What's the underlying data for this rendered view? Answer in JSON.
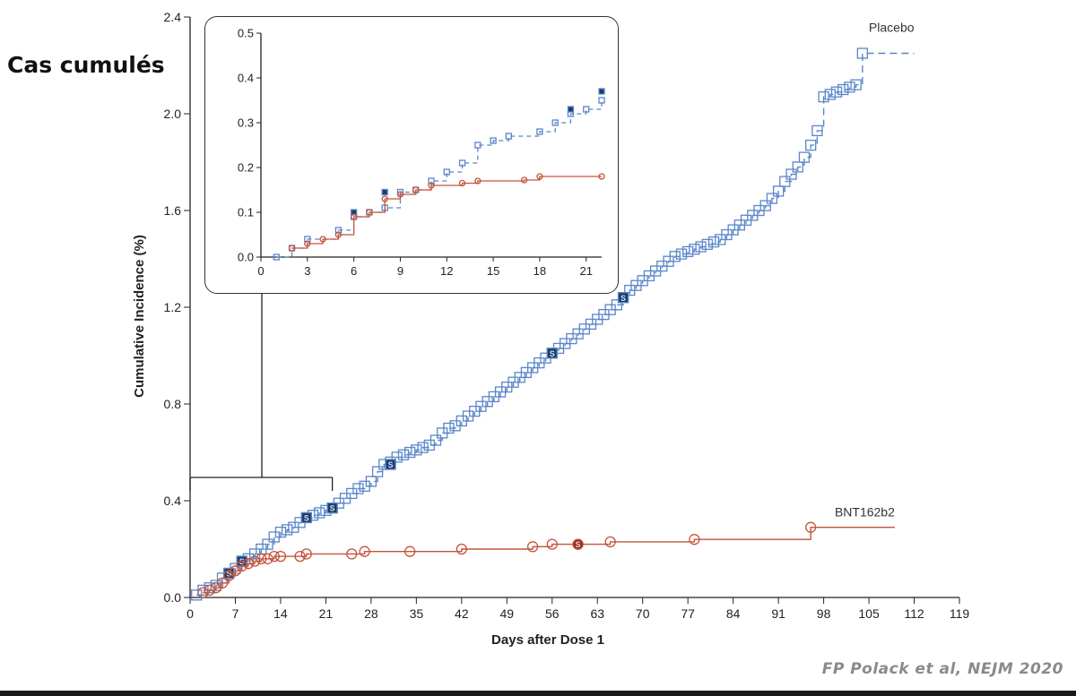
{
  "heading": "Cas cumulés",
  "citation": "FP Polack et al, NEJM 2020",
  "colors": {
    "placebo": "#5a86c8",
    "vaccine": "#c4533a",
    "marker_dark": "#1c3a66",
    "axis": "#222222"
  },
  "chart_data": [
    {
      "type": "line",
      "xlabel": "Days after Dose 1",
      "ylabel": "Cumulative Incidence (%)",
      "xlim": [
        0,
        119
      ],
      "ylim": [
        0,
        2.4
      ],
      "x_ticks": [
        "0",
        "7",
        "14",
        "21",
        "28",
        "35",
        "42",
        "49",
        "56",
        "63",
        "70",
        "77",
        "84",
        "91",
        "98",
        "105",
        "112",
        "119"
      ],
      "y_ticks": [
        "0.0",
        "0.4",
        "0.8",
        "1.2",
        "1.6",
        "2.0",
        "2.4"
      ],
      "step": true,
      "series": [
        {
          "name": "Placebo",
          "color": "#5a86c8",
          "dash": true,
          "marker": "square",
          "points": [
            [
              1,
              0.01
            ],
            [
              2,
              0.03
            ],
            [
              3,
              0.04
            ],
            [
              4,
              0.05
            ],
            [
              5,
              0.08
            ],
            [
              6,
              0.1
            ],
            [
              7,
              0.12
            ],
            [
              8,
              0.15
            ],
            [
              9,
              0.16
            ],
            [
              10,
              0.18
            ],
            [
              11,
              0.2
            ],
            [
              12,
              0.22
            ],
            [
              13,
              0.25
            ],
            [
              14,
              0.27
            ],
            [
              15,
              0.28
            ],
            [
              16,
              0.29
            ],
            [
              17,
              0.31
            ],
            [
              18,
              0.33
            ],
            [
              19,
              0.34
            ],
            [
              20,
              0.35
            ],
            [
              21,
              0.36
            ],
            [
              22,
              0.37
            ],
            [
              23,
              0.39
            ],
            [
              24,
              0.41
            ],
            [
              25,
              0.43
            ],
            [
              26,
              0.45
            ],
            [
              27,
              0.46
            ],
            [
              28,
              0.48
            ],
            [
              29,
              0.52
            ],
            [
              30,
              0.55
            ],
            [
              31,
              0.56
            ],
            [
              32,
              0.58
            ],
            [
              33,
              0.59
            ],
            [
              34,
              0.6
            ],
            [
              35,
              0.61
            ],
            [
              36,
              0.62
            ],
            [
              37,
              0.63
            ],
            [
              38,
              0.65
            ],
            [
              39,
              0.68
            ],
            [
              40,
              0.7
            ],
            [
              41,
              0.71
            ],
            [
              42,
              0.73
            ],
            [
              43,
              0.75
            ],
            [
              44,
              0.77
            ],
            [
              45,
              0.79
            ],
            [
              46,
              0.81
            ],
            [
              47,
              0.83
            ],
            [
              48,
              0.85
            ],
            [
              49,
              0.87
            ],
            [
              50,
              0.89
            ],
            [
              51,
              0.91
            ],
            [
              52,
              0.93
            ],
            [
              53,
              0.95
            ],
            [
              54,
              0.97
            ],
            [
              55,
              0.99
            ],
            [
              56,
              1.01
            ],
            [
              57,
              1.03
            ],
            [
              58,
              1.05
            ],
            [
              59,
              1.07
            ],
            [
              60,
              1.09
            ],
            [
              61,
              1.11
            ],
            [
              62,
              1.13
            ],
            [
              63,
              1.15
            ],
            [
              64,
              1.17
            ],
            [
              65,
              1.19
            ],
            [
              66,
              1.21
            ],
            [
              67,
              1.24
            ],
            [
              68,
              1.27
            ],
            [
              69,
              1.29
            ],
            [
              70,
              1.31
            ],
            [
              71,
              1.33
            ],
            [
              72,
              1.35
            ],
            [
              73,
              1.37
            ],
            [
              74,
              1.39
            ],
            [
              75,
              1.41
            ],
            [
              76,
              1.42
            ],
            [
              77,
              1.43
            ],
            [
              78,
              1.44
            ],
            [
              79,
              1.45
            ],
            [
              80,
              1.46
            ],
            [
              81,
              1.47
            ],
            [
              82,
              1.48
            ],
            [
              83,
              1.5
            ],
            [
              84,
              1.52
            ],
            [
              85,
              1.54
            ],
            [
              86,
              1.56
            ],
            [
              87,
              1.58
            ],
            [
              88,
              1.6
            ],
            [
              89,
              1.62
            ],
            [
              90,
              1.65
            ],
            [
              91,
              1.68
            ],
            [
              92,
              1.72
            ],
            [
              93,
              1.75
            ],
            [
              94,
              1.78
            ],
            [
              95,
              1.82
            ],
            [
              96,
              1.87
            ],
            [
              97,
              1.93
            ],
            [
              98,
              2.07
            ],
            [
              99,
              2.08
            ],
            [
              100,
              2.09
            ],
            [
              101,
              2.1
            ],
            [
              102,
              2.11
            ],
            [
              103,
              2.12
            ],
            [
              104,
              2.25
            ],
            [
              112,
              2.25
            ]
          ],
          "dark_markers": [
            [
              6,
              0.1
            ],
            [
              8,
              0.15
            ],
            [
              18,
              0.33
            ],
            [
              22,
              0.37
            ],
            [
              31,
              0.55
            ],
            [
              56,
              1.01
            ],
            [
              67,
              1.24
            ]
          ]
        },
        {
          "name": "BNT162b2",
          "color": "#c4533a",
          "dash": false,
          "marker": "circle",
          "points": [
            [
              2,
              0.02
            ],
            [
              3,
              0.03
            ],
            [
              4,
              0.04
            ],
            [
              5,
              0.06
            ],
            [
              6,
              0.09
            ],
            [
              7,
              0.11
            ],
            [
              8,
              0.13
            ],
            [
              9,
              0.14
            ],
            [
              10,
              0.15
            ],
            [
              11,
              0.16
            ],
            [
              12,
              0.16
            ],
            [
              13,
              0.17
            ],
            [
              14,
              0.17
            ],
            [
              17,
              0.17
            ],
            [
              18,
              0.18
            ],
            [
              25,
              0.18
            ],
            [
              27,
              0.19
            ],
            [
              34,
              0.19
            ],
            [
              42,
              0.2
            ],
            [
              53,
              0.21
            ],
            [
              56,
              0.22
            ],
            [
              60,
              0.22
            ],
            [
              65,
              0.23
            ],
            [
              78,
              0.24
            ],
            [
              96,
              0.29
            ],
            [
              109,
              0.29
            ]
          ],
          "dark_markers": [
            [
              60,
              0.22
            ]
          ]
        }
      ]
    },
    {
      "type": "line",
      "inset": true,
      "xlim": [
        0,
        22
      ],
      "ylim": [
        0,
        0.5
      ],
      "x_ticks": [
        "0",
        "3",
        "6",
        "9",
        "12",
        "15",
        "18",
        "21"
      ],
      "y_ticks": [
        "0.0",
        "0.1",
        "0.2",
        "0.3",
        "0.4",
        "0.5"
      ],
      "step": true,
      "series": [
        {
          "color": "#5a86c8",
          "dash": true,
          "marker": "square",
          "points": [
            [
              1,
              0.0
            ],
            [
              2,
              0.02
            ],
            [
              3,
              0.04
            ],
            [
              5,
              0.06
            ],
            [
              6,
              0.09
            ],
            [
              7,
              0.1
            ],
            [
              8,
              0.11
            ],
            [
              9,
              0.145
            ],
            [
              10,
              0.15
            ],
            [
              11,
              0.17
            ],
            [
              12,
              0.19
            ],
            [
              13,
              0.21
            ],
            [
              14,
              0.25
            ],
            [
              15,
              0.26
            ],
            [
              16,
              0.27
            ],
            [
              18,
              0.28
            ],
            [
              19,
              0.3
            ],
            [
              20,
              0.32
            ],
            [
              21,
              0.33
            ],
            [
              22,
              0.35
            ]
          ],
          "dark_markers": [
            [
              6,
              0.1
            ],
            [
              8,
              0.145
            ],
            [
              20,
              0.33
            ],
            [
              22,
              0.37
            ]
          ]
        },
        {
          "color": "#c4533a",
          "dash": false,
          "marker": "circle",
          "points": [
            [
              2,
              0.02
            ],
            [
              3,
              0.03
            ],
            [
              4,
              0.04
            ],
            [
              5,
              0.05
            ],
            [
              6,
              0.09
            ],
            [
              7,
              0.1
            ],
            [
              8,
              0.13
            ],
            [
              9,
              0.14
            ],
            [
              10,
              0.15
            ],
            [
              11,
              0.16
            ],
            [
              13,
              0.165
            ],
            [
              14,
              0.17
            ],
            [
              17,
              0.172
            ],
            [
              18,
              0.18
            ],
            [
              22,
              0.18
            ]
          ],
          "dark_markers": []
        }
      ]
    }
  ]
}
